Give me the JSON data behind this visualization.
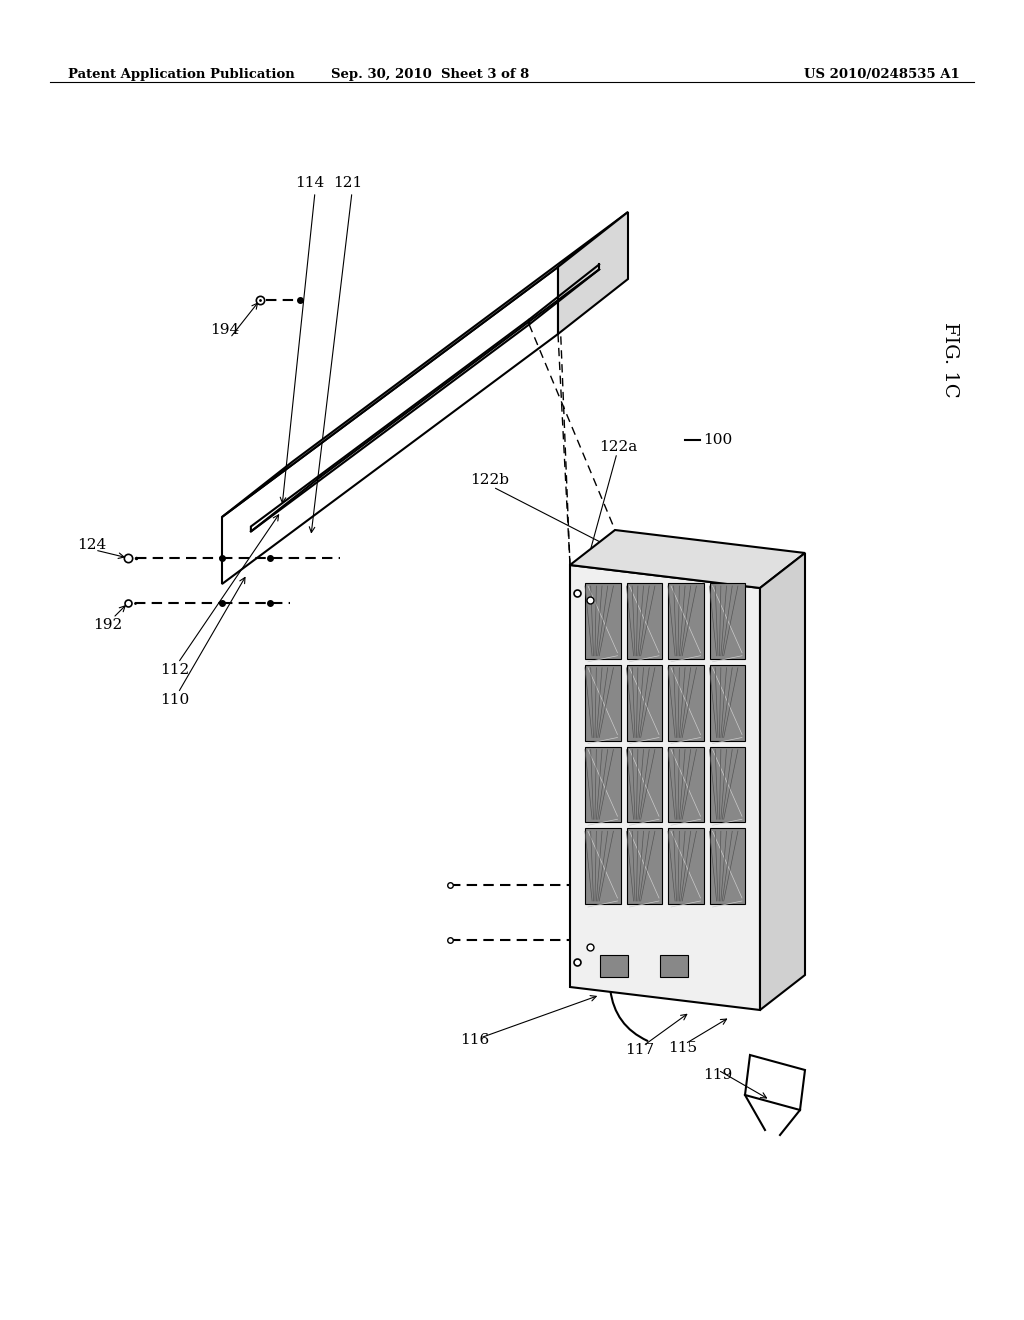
{
  "bg_color": "#ffffff",
  "header_left": "Patent Application Publication",
  "header_mid": "Sep. 30, 2010  Sheet 3 of 8",
  "header_right": "US 2010/0248535 A1",
  "line_color": "#000000",
  "fig_label": "FIG. 1C"
}
